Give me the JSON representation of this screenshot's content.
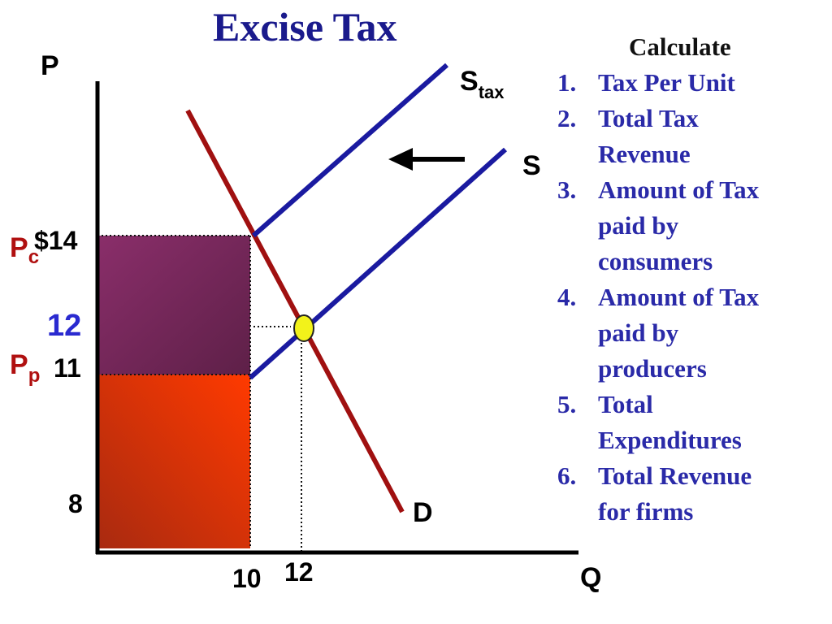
{
  "title": "Excise Tax",
  "labels": {
    "p_axis": "P",
    "q_axis": "Q",
    "s_tax_main": "S",
    "s_tax_sub": "tax",
    "s": "S",
    "d": "D",
    "pc_main": "P",
    "pc_sub": "c",
    "price_14": "$14",
    "price_12": "12",
    "pp_main": "P",
    "pp_sub": "p",
    "price_11": "11",
    "price_8": "8",
    "q_10": "10",
    "q_12": "12"
  },
  "calculate": {
    "heading": "Calculate",
    "items": [
      {
        "num": "1.",
        "lines": [
          "Tax Per Unit"
        ]
      },
      {
        "num": "2.",
        "lines": [
          "Total Tax",
          "Revenue"
        ]
      },
      {
        "num": "3.",
        "lines": [
          "Amount of Tax",
          "paid by",
          "consumers"
        ]
      },
      {
        "num": "4.",
        "lines": [
          "Amount of Tax",
          "paid by",
          "producers"
        ]
      },
      {
        "num": "5.",
        "lines": [
          "Total",
          "Expenditures"
        ]
      },
      {
        "num": "6.",
        "lines": [
          "Total Revenue",
          "for firms"
        ]
      }
    ]
  },
  "colors": {
    "supply": "#1a1aa0",
    "demand": "#a01010",
    "consumer_tax_area": "#7a2a5c",
    "producer_area": "#e83a10",
    "equilibrium_marker": "#f2f21a",
    "label_red": "#b01010",
    "label_blue": "#2a2ad0",
    "calc_blue": "#2a2aa8"
  }
}
